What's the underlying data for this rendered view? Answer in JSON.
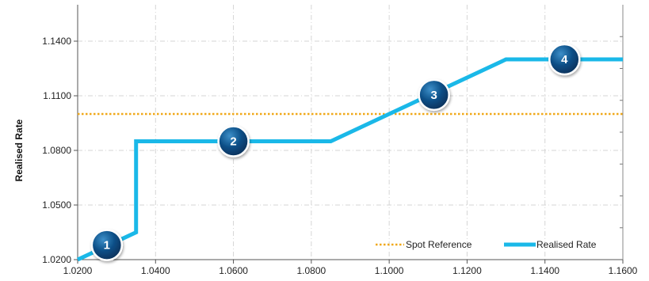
{
  "chart_data": {
    "type": "line",
    "xlabel": "",
    "ylabel": "Realised Rate",
    "xlim": [
      1.02,
      1.16
    ],
    "ylim": [
      1.02,
      1.16
    ],
    "x_ticks": [
      "1.0200",
      "1.0400",
      "1.0600",
      "1.0800",
      "1.1000",
      "1.1200",
      "1.1400",
      "1.1600"
    ],
    "y_ticks": [
      "1.0200",
      "1.0500",
      "1.0800",
      "1.1100",
      "1.1400"
    ],
    "grid": true,
    "legend_position": "bottom-right",
    "series": [
      {
        "name": "Spot Reference",
        "style": "dotted",
        "color": "#f0a818",
        "x": [
          1.02,
          1.16
        ],
        "y": [
          1.1,
          1.1
        ]
      },
      {
        "name": "Realised Rate",
        "style": "solid",
        "color": "#1ab8e8",
        "x": [
          1.02,
          1.035,
          1.035,
          1.085,
          1.13,
          1.16
        ],
        "y": [
          1.02,
          1.035,
          1.085,
          1.085,
          1.13,
          1.13
        ]
      }
    ],
    "markers": [
      {
        "label": "1",
        "x": 1.0275,
        "y": 1.028
      },
      {
        "label": "2",
        "x": 1.06,
        "y": 1.085
      },
      {
        "label": "3",
        "x": 1.1115,
        "y": 1.1105
      },
      {
        "label": "4",
        "x": 1.145,
        "y": 1.13
      }
    ],
    "marker_color": "#0b4e86"
  }
}
